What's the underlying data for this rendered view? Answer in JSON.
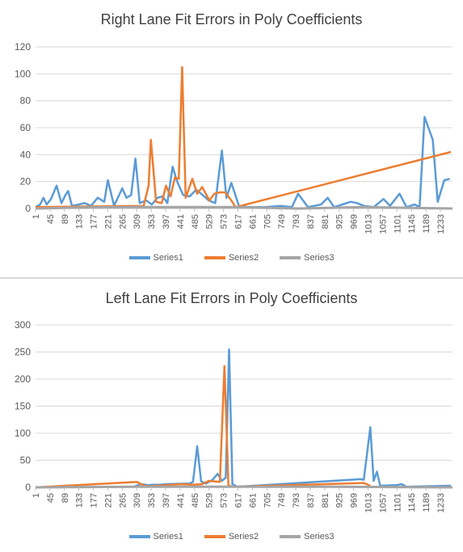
{
  "colors": {
    "series1": "#5B9BD5",
    "series2": "#ED7D31",
    "series3": "#A5A5A5",
    "grid": "#D9D9D9",
    "text": "#595959"
  },
  "chart_data": [
    {
      "type": "line",
      "title": "Right Lane Fit Errors in Poly Coefficients",
      "xlabel": "",
      "ylabel": "",
      "ylim": [
        0,
        120
      ],
      "yticks": [
        0,
        20,
        40,
        60,
        80,
        100,
        120
      ],
      "xrange": [
        1,
        1270
      ],
      "xticks": [
        "1",
        "45",
        "89",
        "133",
        "177",
        "221",
        "265",
        "309",
        "353",
        "397",
        "441",
        "485",
        "529",
        "573",
        "617",
        "661",
        "705",
        "749",
        "793",
        "837",
        "881",
        "925",
        "969",
        "1013",
        "1057",
        "1101",
        "1145",
        "1189",
        "1233"
      ],
      "grid": true,
      "legend_position": "bottom",
      "series": [
        {
          "name": "Series1",
          "points": [
            [
              1,
              1
            ],
            [
              15,
              3
            ],
            [
              25,
              8
            ],
            [
              35,
              3
            ],
            [
              48,
              7
            ],
            [
              65,
              17
            ],
            [
              80,
              4
            ],
            [
              92,
              10
            ],
            [
              100,
              13
            ],
            [
              112,
              2
            ],
            [
              133,
              3
            ],
            [
              150,
              4
            ],
            [
              170,
              2
            ],
            [
              190,
              8
            ],
            [
              210,
              5
            ],
            [
              221,
              21
            ],
            [
              240,
              2
            ],
            [
              265,
              15
            ],
            [
              278,
              8
            ],
            [
              292,
              10
            ],
            [
              305,
              37
            ],
            [
              318,
              4
            ],
            [
              338,
              6
            ],
            [
              355,
              3
            ],
            [
              372,
              8
            ],
            [
              388,
              9
            ],
            [
              402,
              4
            ],
            [
              418,
              31
            ],
            [
              432,
              20
            ],
            [
              450,
              10
            ],
            [
              470,
              9
            ],
            [
              490,
              14
            ],
            [
              505,
              11
            ],
            [
              528,
              6
            ],
            [
              548,
              4
            ],
            [
              568,
              43
            ],
            [
              582,
              8
            ],
            [
              597,
              19
            ],
            [
              620,
              2
            ],
            [
              650,
              1
            ],
            [
              700,
              1
            ],
            [
              748,
              2
            ],
            [
              781,
              1
            ],
            [
              800,
              11
            ],
            [
              830,
              1
            ],
            [
              870,
              3
            ],
            [
              890,
              8
            ],
            [
              910,
              1
            ],
            [
              935,
              3
            ],
            [
              960,
              5
            ],
            [
              980,
              4
            ],
            [
              1000,
              2
            ],
            [
              1030,
              1
            ],
            [
              1060,
              7
            ],
            [
              1080,
              2
            ],
            [
              1109,
              11
            ],
            [
              1130,
              1
            ],
            [
              1155,
              3
            ],
            [
              1170,
              1
            ],
            [
              1185,
              68
            ],
            [
              1210,
              51
            ],
            [
              1225,
              5
            ],
            [
              1245,
              21
            ],
            [
              1262,
              22
            ]
          ]
        },
        {
          "name": "Series2",
          "points": [
            [
              1,
              1
            ],
            [
              330,
              2
            ],
            [
              345,
              17
            ],
            [
              352,
              51
            ],
            [
              368,
              5
            ],
            [
              385,
              4
            ],
            [
              398,
              17
            ],
            [
              412,
              9
            ],
            [
              425,
              23
            ],
            [
              437,
              22
            ],
            [
              447,
              105
            ],
            [
              458,
              8
            ],
            [
              478,
              22
            ],
            [
              493,
              11
            ],
            [
              508,
              16
            ],
            [
              530,
              6
            ],
            [
              545,
              11
            ],
            [
              562,
              12
            ],
            [
              578,
              12
            ],
            [
              597,
              6
            ],
            [
              610,
              1
            ],
            [
              1265,
              42
            ]
          ]
        },
        {
          "name": "Series3",
          "points": [
            [
              1,
              0
            ],
            [
              200,
              1
            ],
            [
              400,
              1
            ],
            [
              600,
              1
            ],
            [
              800,
              0
            ],
            [
              1000,
              1
            ],
            [
              1270,
              0
            ]
          ]
        }
      ]
    },
    {
      "type": "line",
      "title": "Left Lane Fit Errors in Poly Coefficients",
      "xlabel": "",
      "ylabel": "",
      "ylim": [
        0,
        300
      ],
      "yticks": [
        0,
        50,
        100,
        150,
        200,
        250,
        300
      ],
      "xrange": [
        1,
        1270
      ],
      "xticks": [
        "1",
        "45",
        "89",
        "133",
        "177",
        "221",
        "265",
        "309",
        "353",
        "397",
        "441",
        "485",
        "529",
        "573",
        "617",
        "661",
        "705",
        "749",
        "793",
        "837",
        "881",
        "925",
        "969",
        "1013",
        "1057",
        "1101",
        "1145",
        "1189",
        "1233"
      ],
      "grid": true,
      "legend_position": "bottom",
      "series": [
        {
          "name": "Series1",
          "points": [
            [
              1,
              0
            ],
            [
              300,
              1
            ],
            [
              320,
              6
            ],
            [
              345,
              4
            ],
            [
              360,
              5
            ],
            [
              380,
              5
            ],
            [
              400,
              6
            ],
            [
              470,
              7
            ],
            [
              480,
              10
            ],
            [
              493,
              76
            ],
            [
              505,
              11
            ],
            [
              520,
              7
            ],
            [
              540,
              14
            ],
            [
              555,
              25
            ],
            [
              568,
              12
            ],
            [
              580,
              18
            ],
            [
              590,
              255
            ],
            [
              600,
              6
            ],
            [
              615,
              1
            ],
            [
              990,
              15
            ],
            [
              1000,
              14
            ],
            [
              1020,
              111
            ],
            [
              1030,
              12
            ],
            [
              1040,
              29
            ],
            [
              1050,
              3
            ],
            [
              1100,
              4
            ],
            [
              1115,
              6
            ],
            [
              1130,
              1
            ],
            [
              1265,
              3
            ]
          ]
        },
        {
          "name": "Series2",
          "points": [
            [
              1,
              0
            ],
            [
              310,
              10
            ],
            [
              325,
              5
            ],
            [
              340,
              2
            ],
            [
              420,
              5
            ],
            [
              445,
              6
            ],
            [
              480,
              5
            ],
            [
              508,
              6
            ],
            [
              528,
              12
            ],
            [
              562,
              10
            ],
            [
              576,
              224
            ],
            [
              588,
              4
            ],
            [
              600,
              1
            ],
            [
              1000,
              8
            ],
            [
              1020,
              3
            ]
          ]
        },
        {
          "name": "Series3",
          "points": [
            [
              1,
              0
            ],
            [
              300,
              1
            ],
            [
              600,
              1
            ],
            [
              900,
              1
            ],
            [
              1270,
              0
            ]
          ]
        }
      ]
    }
  ]
}
